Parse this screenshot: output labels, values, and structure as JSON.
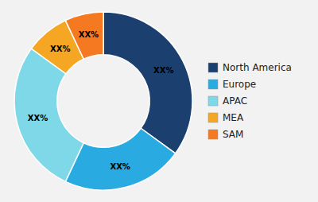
{
  "chart_data": {
    "type": "donut",
    "categories": [
      "North America",
      "Europe",
      "APAC",
      "MEA",
      "SAM"
    ],
    "values": [
      35,
      22,
      28,
      8,
      7
    ],
    "value_labels": [
      "XX%",
      "XX%",
      "XX%",
      "XX%",
      "XX%"
    ],
    "colors": [
      "#1b3f6e",
      "#29abe2",
      "#7ed8e8",
      "#f5a623",
      "#f47920"
    ],
    "data_labels": true,
    "legend": "right"
  }
}
